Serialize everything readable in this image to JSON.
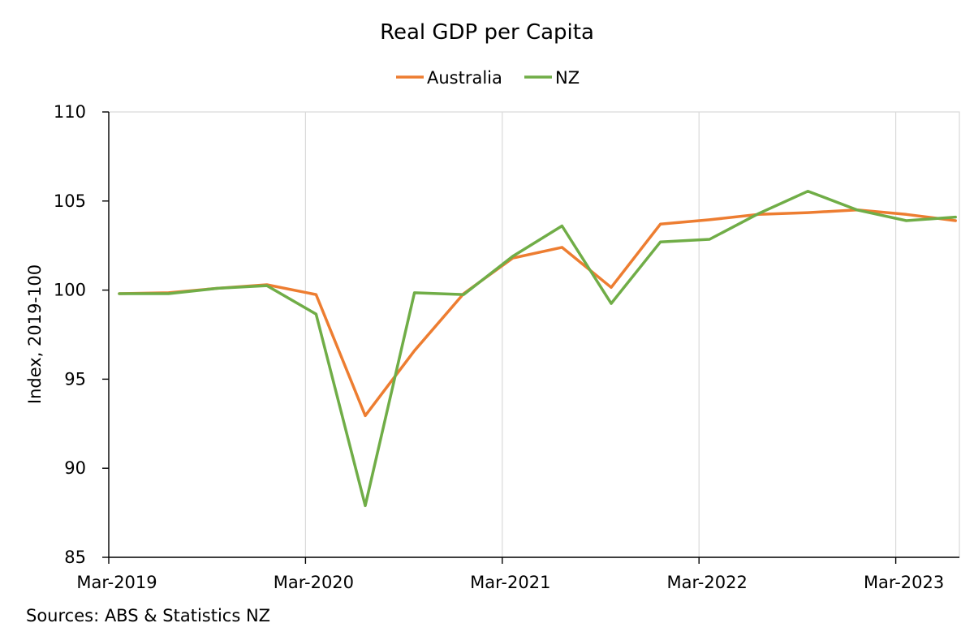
{
  "chart_data": {
    "type": "line",
    "title": "Real GDP per Capita",
    "ylabel": "Index, 2019-100",
    "xlabel": "",
    "ylim": [
      85,
      110
    ],
    "y_ticks": [
      85,
      90,
      95,
      100,
      105,
      110
    ],
    "x_tick_labels": [
      "Mar-2019",
      "Mar-2020",
      "Mar-2021",
      "Mar-2022",
      "Mar-2023"
    ],
    "x_tick_indices": [
      0,
      4,
      8,
      12,
      16
    ],
    "x": [
      "Mar-2019",
      "Jun-2019",
      "Sep-2019",
      "Dec-2019",
      "Mar-2020",
      "Jun-2020",
      "Sep-2020",
      "Dec-2020",
      "Mar-2021",
      "Jun-2021",
      "Sep-2021",
      "Dec-2021",
      "Mar-2022",
      "Jun-2022",
      "Sep-2022",
      "Dec-2022",
      "Mar-2023",
      "Jun-2023"
    ],
    "grid": "vertical",
    "legend_position": "top",
    "series": [
      {
        "name": "Australia",
        "color": "#ED7D31",
        "values": [
          99.8,
          99.85,
          100.1,
          100.3,
          99.75,
          92.95,
          96.6,
          99.8,
          101.8,
          102.4,
          100.15,
          103.7,
          103.95,
          104.25,
          104.35,
          104.5,
          104.25,
          103.9
        ]
      },
      {
        "name": "NZ",
        "color": "#70AD47",
        "values": [
          99.8,
          99.8,
          100.1,
          100.25,
          98.65,
          87.9,
          99.85,
          99.75,
          101.9,
          103.6,
          99.25,
          102.7,
          102.85,
          104.3,
          105.55,
          104.5,
          103.9,
          104.1
        ]
      }
    ],
    "source": "Sources: ABS & Statistics NZ"
  }
}
